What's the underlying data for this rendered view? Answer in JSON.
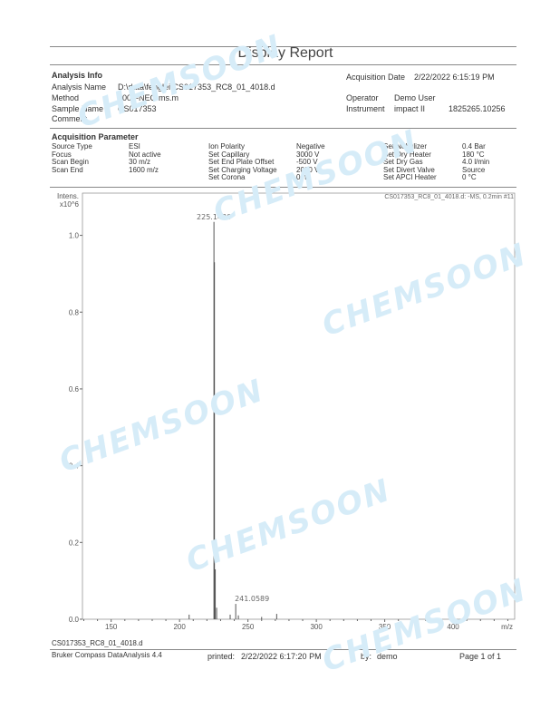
{
  "title": "Display Report",
  "watermark": "CHEMSOON",
  "analysis_info": {
    "heading": "Analysis Info",
    "rows": [
      {
        "label": "Analysis Name",
        "value": "D:\\data\\fenglei\\CS017353_RC8_01_4018.d"
      },
      {
        "label": "Method",
        "value": "1008-NEG ms.m"
      },
      {
        "label": "Sample Name",
        "value": "CS017353"
      },
      {
        "label": "Comment",
        "value": ""
      }
    ],
    "acq_date_label": "Acquisition Date",
    "acq_date": "2/22/2022 6:15:19 PM",
    "operator_label": "Operator",
    "operator": "Demo User",
    "instrument_label": "Instrument",
    "instrument": "impact II",
    "serial": "1825265.10256"
  },
  "acquisition": {
    "heading": "Acquisition Parameter",
    "col1": [
      [
        "Source Type",
        "ESI"
      ],
      [
        "Focus",
        "Not active"
      ],
      [
        "Scan Begin",
        "30 m/z"
      ],
      [
        "Scan End",
        "1600 m/z"
      ]
    ],
    "col2": [
      [
        "Ion Polarity",
        "Negative"
      ],
      [
        "Set Capillary",
        "3000 V"
      ],
      [
        "Set End Plate Offset",
        "-500 V"
      ],
      [
        "Set Charging Voltage",
        "2000 V"
      ],
      [
        "Set Corona",
        "0 nA"
      ]
    ],
    "col3": [
      [
        "Set Nebulizer",
        "0.4 Bar"
      ],
      [
        "Set Dry Heater",
        "180 °C"
      ],
      [
        "Set Dry Gas",
        "4.0 l/min"
      ],
      [
        "Set Divert Valve",
        "Source"
      ],
      [
        "Set APCI Heater",
        "0 °C"
      ]
    ]
  },
  "chart_data": {
    "type": "line",
    "title": "CS017353_RC8_01_4018.d: -MS, 0.2min #11",
    "ylabel": "Intens.",
    "yunit": "x10^6",
    "xlabel": "m/z",
    "xlim": [
      129,
      445
    ],
    "ylim": [
      0,
      1.11
    ],
    "xticks": [
      150,
      200,
      250,
      300,
      350,
      400
    ],
    "yticks": [
      0.0,
      0.2,
      0.4,
      0.6,
      0.8,
      1.0
    ],
    "peaks": [
      {
        "mz": 207.0,
        "intensity": 0.012
      },
      {
        "mz": 225.143,
        "intensity": 1.035,
        "label": "225.1430"
      },
      {
        "mz": 225.5,
        "intensity": 0.93
      },
      {
        "mz": 226.1,
        "intensity": 0.13
      },
      {
        "mz": 227.1,
        "intensity": 0.03
      },
      {
        "mz": 237.0,
        "intensity": 0.012
      },
      {
        "mz": 241.0589,
        "intensity": 0.04,
        "label": "241.0589"
      },
      {
        "mz": 243.0,
        "intensity": 0.01
      },
      {
        "mz": 260.0,
        "intensity": 0.006
      },
      {
        "mz": 271.0,
        "intensity": 0.014
      }
    ]
  },
  "footer": {
    "file": "CS017353_RC8_01_4018.d",
    "software": "Bruker Compass DataAnalysis 4.4",
    "printed_label": "printed:",
    "printed": "2/22/2022 6:17:20 PM",
    "by_label": "by:",
    "by": "demo",
    "page": "Page 1 of 1"
  }
}
